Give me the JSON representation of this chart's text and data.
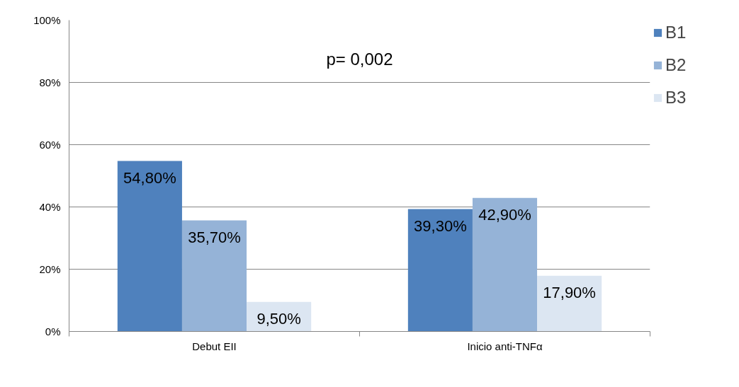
{
  "chart_data": {
    "type": "bar",
    "categories": [
      "Debut EII",
      "Inicio anti-TNFα"
    ],
    "series": [
      {
        "name": "B1",
        "color": "#4f81bd",
        "values": [
          54.8,
          39.3
        ],
        "value_labels": [
          "54,80%",
          "39,30%"
        ]
      },
      {
        "name": "B2",
        "color": "#95b3d7",
        "values": [
          35.7,
          42.9
        ],
        "value_labels": [
          "35,70%",
          "42,90%"
        ]
      },
      {
        "name": "B3",
        "color": "#dce6f2",
        "values": [
          9.5,
          17.9
        ],
        "value_labels": [
          "9,50%",
          "17,90%"
        ]
      }
    ],
    "ylim": [
      0,
      100
    ],
    "yticks": [
      {
        "value": 0,
        "label": "0%"
      },
      {
        "value": 20,
        "label": "20%"
      },
      {
        "value": 40,
        "label": "40%"
      },
      {
        "value": 60,
        "label": "60%"
      },
      {
        "value": 80,
        "label": "80%"
      },
      {
        "value": 100,
        "label": "100%"
      }
    ],
    "grid": "y",
    "legend": "right",
    "annotations": [
      "p= 0,002"
    ]
  }
}
